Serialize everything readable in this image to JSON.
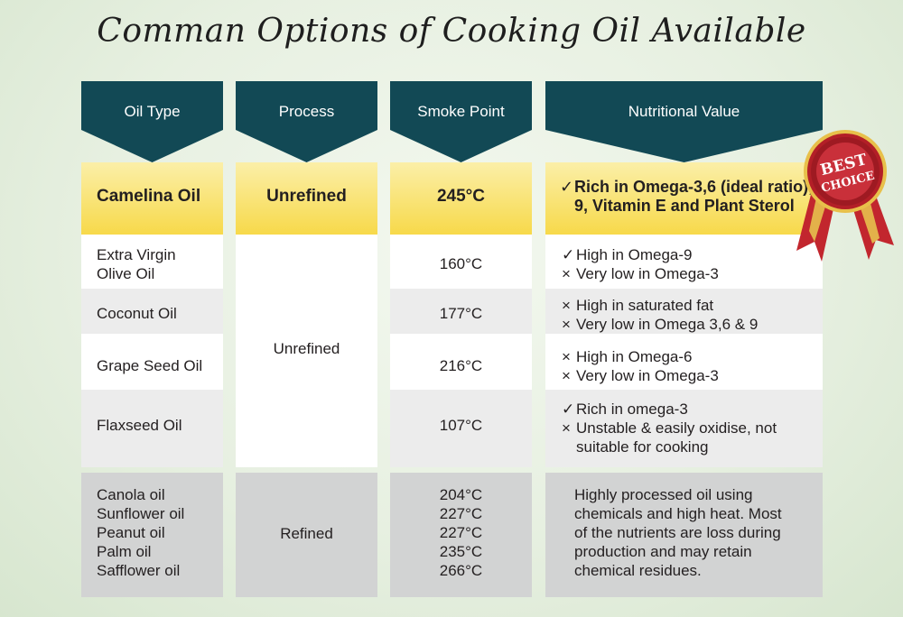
{
  "title": "Comman Options of Cooking Oil Available",
  "headers": [
    "Oil Type",
    "Process",
    "Smoke Point",
    "Nutritional Value"
  ],
  "badge": {
    "line1": "BEST",
    "line2": "CHOICE"
  },
  "featured": {
    "oil": "Camelina Oil",
    "process": "Unrefined",
    "smoke": "245°C",
    "nutrition_mark": "✓",
    "nutrition": "Rich in Omega-3,6 (ideal ratio),\n9, Vitamin E and Plant Sterol"
  },
  "unrefined_process": "Unrefined",
  "rows": [
    {
      "oil": "Extra Virgin\nOlive Oil",
      "smoke": "160°C",
      "notes": [
        {
          "mark": "✓",
          "text": "High in Omega-9"
        },
        {
          "mark": "×",
          "text": "Very low in Omega-3"
        }
      ]
    },
    {
      "oil": "Coconut Oil",
      "smoke": "177°C",
      "notes": [
        {
          "mark": "×",
          "text": "High in saturated fat"
        },
        {
          "mark": "×",
          "text": "Very low in Omega 3,6 & 9"
        }
      ]
    },
    {
      "oil": "Grape Seed Oil",
      "smoke": "216°C",
      "notes": [
        {
          "mark": "×",
          "text": "High in Omega-6"
        },
        {
          "mark": "×",
          "text": "Very low in Omega-3"
        }
      ]
    },
    {
      "oil": "Flaxseed Oil",
      "smoke": "107°C",
      "notes": [
        {
          "mark": "✓",
          "text": "Rich in omega-3"
        },
        {
          "mark": "×",
          "text": "Unstable & easily oxidise, not\nsuitable for cooking"
        }
      ]
    }
  ],
  "refined": {
    "oils": "Canola oil\nSunflower oil\nPeanut oil\nPalm oil\nSafflower oil",
    "process": "Refined",
    "smokes": "204°C\n227°C\n227°C\n235°C\n266°C",
    "nutrition": "Highly processed oil using\nchemicals and high heat. Most\nof the nutrients are loss during\nproduction and may retain\nchemical residues."
  }
}
